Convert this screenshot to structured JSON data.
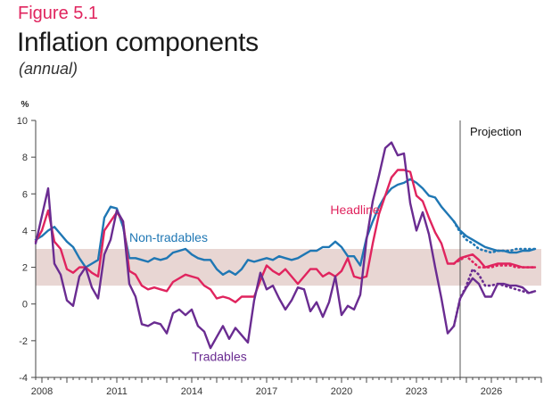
{
  "figure_label": "Figure 5.1",
  "title": "Inflation components",
  "subtitle": "(annual)",
  "colors": {
    "headline": "#e0245e",
    "non_tradables": "#1f77b4",
    "tradables": "#6a2c91",
    "target_band": "#e8d6d3",
    "axis": "#444444",
    "grid": "#d9d9d9"
  },
  "chart_data": {
    "type": "line",
    "title": "Inflation components",
    "subtitle": "(annual)",
    "ylabel": "%",
    "ylim": [
      -4,
      10
    ],
    "yticks": [
      -4,
      -2,
      0,
      2,
      4,
      6,
      8,
      10
    ],
    "xlim": [
      2007.75,
      2028.0
    ],
    "xticks": [
      2008,
      2011,
      2014,
      2017,
      2020,
      2023,
      2026
    ],
    "target_band": [
      1,
      3
    ],
    "projection_start": 2024.75,
    "projection_label": "Projection",
    "series": [
      {
        "name": "Non-tradables",
        "label": "Non-tradables",
        "color": "#1f77b4",
        "x": [
          2007.75,
          2008.0,
          2008.25,
          2008.5,
          2008.75,
          2009.0,
          2009.25,
          2009.5,
          2009.75,
          2010.0,
          2010.25,
          2010.5,
          2010.75,
          2011.0,
          2011.25,
          2011.5,
          2011.75,
          2012.0,
          2012.25,
          2012.5,
          2012.75,
          2013.0,
          2013.25,
          2013.5,
          2013.75,
          2014.0,
          2014.25,
          2014.5,
          2014.75,
          2015.0,
          2015.25,
          2015.5,
          2015.75,
          2016.0,
          2016.25,
          2016.5,
          2016.75,
          2017.0,
          2017.25,
          2017.5,
          2017.75,
          2018.0,
          2018.25,
          2018.5,
          2018.75,
          2019.0,
          2019.25,
          2019.5,
          2019.75,
          2020.0,
          2020.25,
          2020.5,
          2020.75,
          2021.0,
          2021.25,
          2021.5,
          2021.75,
          2022.0,
          2022.25,
          2022.5,
          2022.75,
          2023.0,
          2023.25,
          2023.5,
          2023.75,
          2024.0,
          2024.25,
          2024.5,
          2024.75,
          2025.0,
          2025.25,
          2025.5,
          2025.75,
          2026.0,
          2026.25,
          2026.5,
          2026.75,
          2027.0,
          2027.25,
          2027.5,
          2027.75
        ],
        "values": [
          3.5,
          3.7,
          4.0,
          4.2,
          3.8,
          3.4,
          3.1,
          2.5,
          2.0,
          2.2,
          2.4,
          4.7,
          5.3,
          5.2,
          4.2,
          2.5,
          2.5,
          2.4,
          2.3,
          2.5,
          2.4,
          2.5,
          2.8,
          2.9,
          3.0,
          2.7,
          2.5,
          2.4,
          2.4,
          1.9,
          1.6,
          1.8,
          1.6,
          1.9,
          2.4,
          2.3,
          2.4,
          2.5,
          2.4,
          2.6,
          2.5,
          2.4,
          2.5,
          2.7,
          2.9,
          2.9,
          3.1,
          3.1,
          3.4,
          3.1,
          2.6,
          2.6,
          2.1,
          3.6,
          4.5,
          5.3,
          5.9,
          6.3,
          6.5,
          6.6,
          6.8,
          6.6,
          6.3,
          5.9,
          5.8,
          5.3,
          4.9,
          4.5,
          4.0,
          3.7,
          3.5,
          3.3,
          3.1,
          3.0,
          2.9,
          2.9,
          2.8,
          2.8,
          2.9,
          2.9,
          3.0
        ]
      },
      {
        "name": "Headline",
        "label": "Headline",
        "color": "#e0245e",
        "x": [
          2007.75,
          2008.0,
          2008.25,
          2008.5,
          2008.75,
          2009.0,
          2009.25,
          2009.5,
          2009.75,
          2010.0,
          2010.25,
          2010.5,
          2010.75,
          2011.0,
          2011.25,
          2011.5,
          2011.75,
          2012.0,
          2012.25,
          2012.5,
          2012.75,
          2013.0,
          2013.25,
          2013.5,
          2013.75,
          2014.0,
          2014.25,
          2014.5,
          2014.75,
          2015.0,
          2015.25,
          2015.5,
          2015.75,
          2016.0,
          2016.25,
          2016.5,
          2016.75,
          2017.0,
          2017.25,
          2017.5,
          2017.75,
          2018.0,
          2018.25,
          2018.5,
          2018.75,
          2019.0,
          2019.25,
          2019.5,
          2019.75,
          2020.0,
          2020.25,
          2020.5,
          2020.75,
          2021.0,
          2021.25,
          2021.5,
          2021.75,
          2022.0,
          2022.25,
          2022.5,
          2022.75,
          2023.0,
          2023.25,
          2023.5,
          2023.75,
          2024.0,
          2024.25,
          2024.5,
          2024.75,
          2025.0,
          2025.25,
          2025.5,
          2025.75,
          2026.0,
          2026.25,
          2026.5,
          2026.75,
          2027.0,
          2027.25,
          2027.5,
          2027.75
        ],
        "values": [
          3.4,
          4.0,
          5.1,
          3.4,
          3.0,
          1.9,
          1.7,
          2.0,
          2.0,
          1.7,
          1.5,
          4.0,
          4.5,
          5.0,
          4.5,
          1.8,
          1.6,
          1.0,
          0.8,
          0.9,
          0.8,
          0.7,
          1.2,
          1.4,
          1.6,
          1.5,
          1.4,
          1.0,
          0.8,
          0.3,
          0.4,
          0.3,
          0.1,
          0.4,
          0.4,
          0.4,
          1.3,
          2.1,
          1.8,
          1.6,
          1.9,
          1.5,
          1.1,
          1.5,
          1.9,
          1.9,
          1.5,
          1.7,
          1.5,
          1.8,
          2.5,
          1.5,
          1.4,
          1.5,
          3.3,
          4.9,
          5.9,
          6.9,
          7.3,
          7.3,
          7.2,
          5.9,
          5.6,
          4.7,
          3.9,
          3.3,
          2.2,
          2.2,
          2.5,
          2.6,
          2.7,
          2.4,
          2.0,
          2.1,
          2.2,
          2.2,
          2.2,
          2.1,
          2.0,
          2.0,
          2.0
        ]
      },
      {
        "name": "Tradables",
        "label": "Tradables",
        "color": "#6a2c91",
        "x": [
          2007.75,
          2008.0,
          2008.25,
          2008.5,
          2008.75,
          2009.0,
          2009.25,
          2009.5,
          2009.75,
          2010.0,
          2010.25,
          2010.5,
          2010.75,
          2011.0,
          2011.25,
          2011.5,
          2011.75,
          2012.0,
          2012.25,
          2012.5,
          2012.75,
          2013.0,
          2013.25,
          2013.5,
          2013.75,
          2014.0,
          2014.25,
          2014.5,
          2014.75,
          2015.0,
          2015.25,
          2015.5,
          2015.75,
          2016.0,
          2016.25,
          2016.5,
          2016.75,
          2017.0,
          2017.25,
          2017.5,
          2017.75,
          2018.0,
          2018.25,
          2018.5,
          2018.75,
          2019.0,
          2019.25,
          2019.5,
          2019.75,
          2020.0,
          2020.25,
          2020.5,
          2020.75,
          2021.0,
          2021.25,
          2021.5,
          2021.75,
          2022.0,
          2022.25,
          2022.5,
          2022.75,
          2023.0,
          2023.25,
          2023.5,
          2023.75,
          2024.0,
          2024.25,
          2024.5,
          2024.75,
          2025.0,
          2025.25,
          2025.5,
          2025.75,
          2026.0,
          2026.25,
          2026.5,
          2026.75,
          2027.0,
          2027.25,
          2027.5,
          2027.75
        ],
        "values": [
          3.3,
          4.8,
          6.3,
          2.2,
          1.6,
          0.2,
          -0.1,
          1.5,
          2.0,
          0.9,
          0.3,
          2.7,
          3.5,
          5.1,
          4.5,
          1.1,
          0.4,
          -1.1,
          -1.2,
          -1.0,
          -1.1,
          -1.6,
          -0.5,
          -0.3,
          -0.6,
          -0.3,
          -1.2,
          -1.5,
          -2.4,
          -1.8,
          -1.2,
          -1.9,
          -1.3,
          -1.7,
          -2.1,
          0.2,
          1.7,
          0.8,
          1.0,
          0.3,
          -0.3,
          0.2,
          0.9,
          0.8,
          -0.4,
          0.1,
          -0.7,
          0.1,
          1.5,
          -0.6,
          -0.1,
          -0.3,
          0.5,
          3.5,
          5.6,
          7.0,
          8.5,
          8.8,
          8.1,
          8.2,
          5.5,
          4.0,
          5.0,
          3.8,
          2.0,
          0.3,
          -1.6,
          -1.2,
          0.3,
          0.9,
          1.4,
          1.1,
          0.4,
          0.4,
          1.1,
          1.1,
          1.0,
          1.0,
          0.9,
          0.6,
          0.7
        ]
      },
      {
        "name": "Non-tradables (alternative projection)",
        "style": "dotted",
        "color": "#1f77b4",
        "x": [
          2024.5,
          2024.75,
          2025.0,
          2025.25,
          2025.5,
          2025.75,
          2026.0,
          2026.25,
          2026.5,
          2026.75,
          2027.0,
          2027.25,
          2027.5,
          2027.75
        ],
        "values": [
          4.5,
          3.9,
          3.5,
          3.3,
          3.0,
          2.9,
          2.8,
          2.9,
          2.9,
          2.9,
          3.0,
          3.0,
          3.0,
          3.0
        ]
      },
      {
        "name": "Headline (alternative projection)",
        "style": "dotted",
        "color": "#e0245e",
        "x": [
          2024.5,
          2024.75,
          2025.0,
          2025.25,
          2025.5,
          2025.75,
          2026.0,
          2026.25,
          2026.5,
          2026.75,
          2027.0,
          2027.25,
          2027.5,
          2027.75
        ],
        "values": [
          2.2,
          2.4,
          2.6,
          2.3,
          2.0,
          2.0,
          2.0,
          2.1,
          2.1,
          2.1,
          2.0,
          2.0,
          2.0,
          2.0
        ]
      },
      {
        "name": "Tradables (alternative projection)",
        "style": "dotted",
        "color": "#6a2c91",
        "x": [
          2024.5,
          2024.75,
          2025.0,
          2025.25,
          2025.5,
          2025.75,
          2026.0,
          2026.25,
          2026.5,
          2026.75,
          2027.0,
          2027.25,
          2027.5,
          2027.75
        ],
        "values": [
          -1.2,
          0.3,
          1.0,
          1.9,
          1.6,
          1.0,
          1.0,
          1.1,
          1.0,
          0.9,
          0.8,
          0.7,
          0.6,
          0.7
        ]
      }
    ],
    "annotations": [
      {
        "text": "Non-tradables",
        "x": 2011.5,
        "y": 3.4,
        "color": "#1f77b4"
      },
      {
        "text": "Headline",
        "x": 2019.55,
        "y": 4.9,
        "color": "#e0245e"
      },
      {
        "text": "Tradables",
        "x": 2014.0,
        "y": -3.1,
        "color": "#6a2c91"
      }
    ]
  }
}
